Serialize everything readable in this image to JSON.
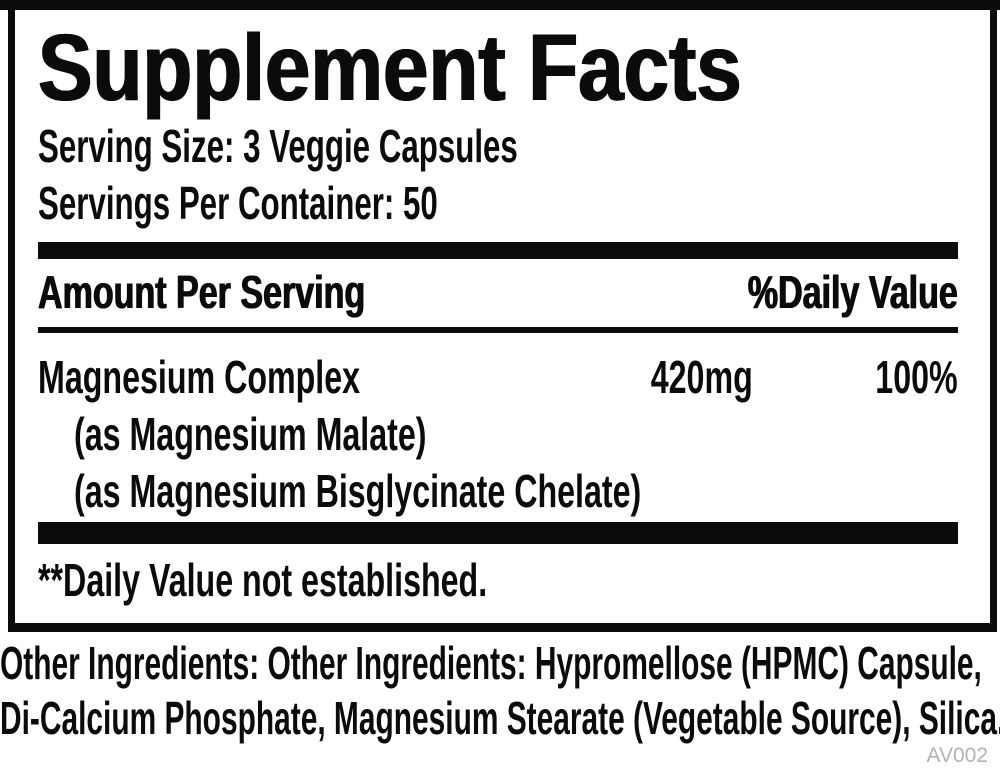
{
  "label": {
    "title": "Supplement Facts",
    "serving_size_line": "Serving Size: 3 Veggie Capsules",
    "servings_per_container_line": "Servings Per Container: 50",
    "header": {
      "amount_per_serving": "Amount Per Serving",
      "daily_value": "%Daily Value"
    },
    "rows": [
      {
        "name": "Magnesium Complex",
        "amount": "420mg",
        "daily_value": "100%",
        "sub": [
          "(as Magnesium Malate)",
          "(as Magnesium Bisglycinate Chelate)"
        ]
      }
    ],
    "footnote": "**Daily Value not established."
  },
  "other_ingredients": {
    "line1": "Other Ingredients: Other Ingredients: Hypromellose (HPMC) Capsule,",
    "line2": "Di-Calcium Phosphate, Magnesium Stearate (Vegetable Source), Silica."
  },
  "footer_code": "AV002",
  "colors": {
    "ink": "#0b0b0b",
    "muted_gray": "#b2b2b2",
    "background": "#ffffff"
  }
}
